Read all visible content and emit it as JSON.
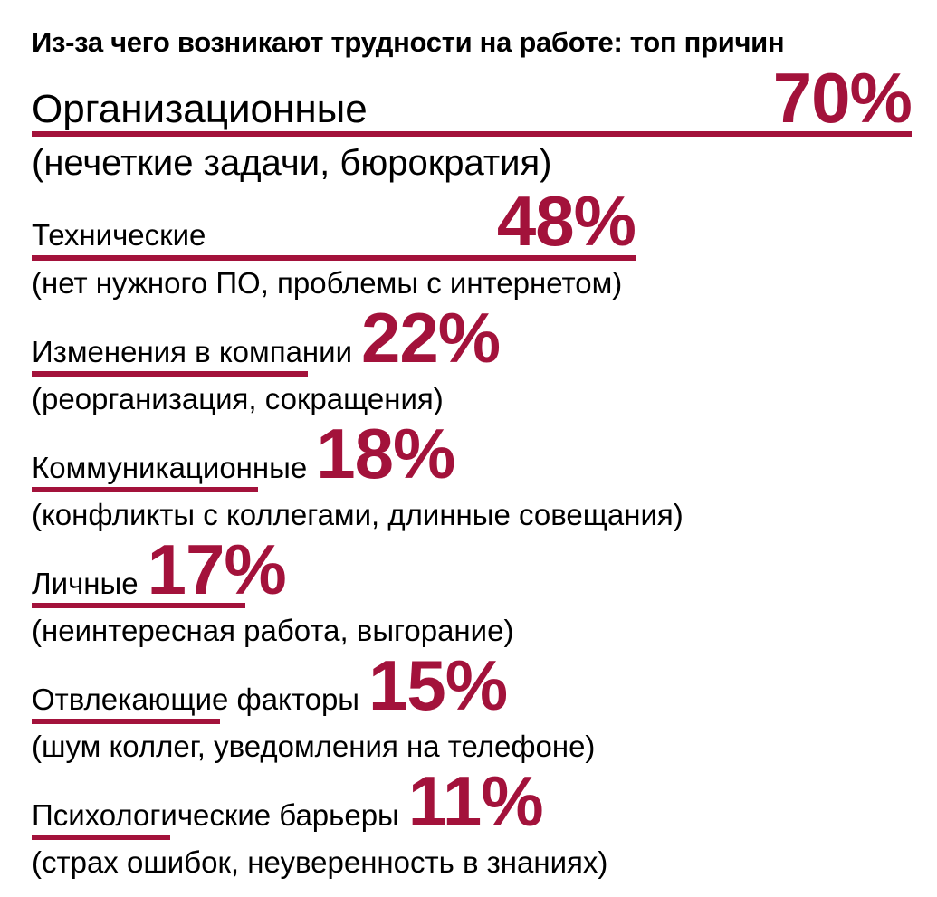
{
  "colors": {
    "accent": "#A3123B",
    "text": "#000000",
    "background": "#FFFFFF"
  },
  "chart_data": {
    "type": "bar",
    "orientation": "horizontal",
    "title": "Из-за чего возникают трудности на работе: топ причин",
    "unit": "%",
    "xlim": [
      0,
      70
    ],
    "scale_max": 70,
    "grid": false,
    "legend": false,
    "categories": [
      "Организационные",
      "Технические",
      "Изменения в компании",
      "Коммуникационные",
      "Личные",
      "Отвлекающие факторы",
      "Психологические барьеры"
    ],
    "values": [
      70,
      48,
      22,
      18,
      17,
      15,
      11
    ],
    "items": [
      {
        "label": "Организационные",
        "value": 70,
        "value_label": "70%",
        "description": "(нечеткие задачи, бюрократия)"
      },
      {
        "label": "Технические",
        "value": 48,
        "value_label": "48%",
        "description": "(нет нужного ПО, проблемы с интернетом)"
      },
      {
        "label": "Изменения в компании",
        "value": 22,
        "value_label": "22%",
        "description": "(реорганизация, сокращения)"
      },
      {
        "label": "Коммуникационные",
        "value": 18,
        "value_label": "18%",
        "description": "(конфликты с коллегами, длинные совещания)"
      },
      {
        "label": "Личные",
        "value": 17,
        "value_label": "17%",
        "description": "(неинтересная работа, выгорание)"
      },
      {
        "label": "Отвлекающие факторы",
        "value": 15,
        "value_label": "15%",
        "description": "(шум коллег, уведомления на телефоне)"
      },
      {
        "label": "Психологические барьеры",
        "value": 11,
        "value_label": "11%",
        "description": "(страх ошибок, неуверенность в знаниях)"
      }
    ]
  }
}
